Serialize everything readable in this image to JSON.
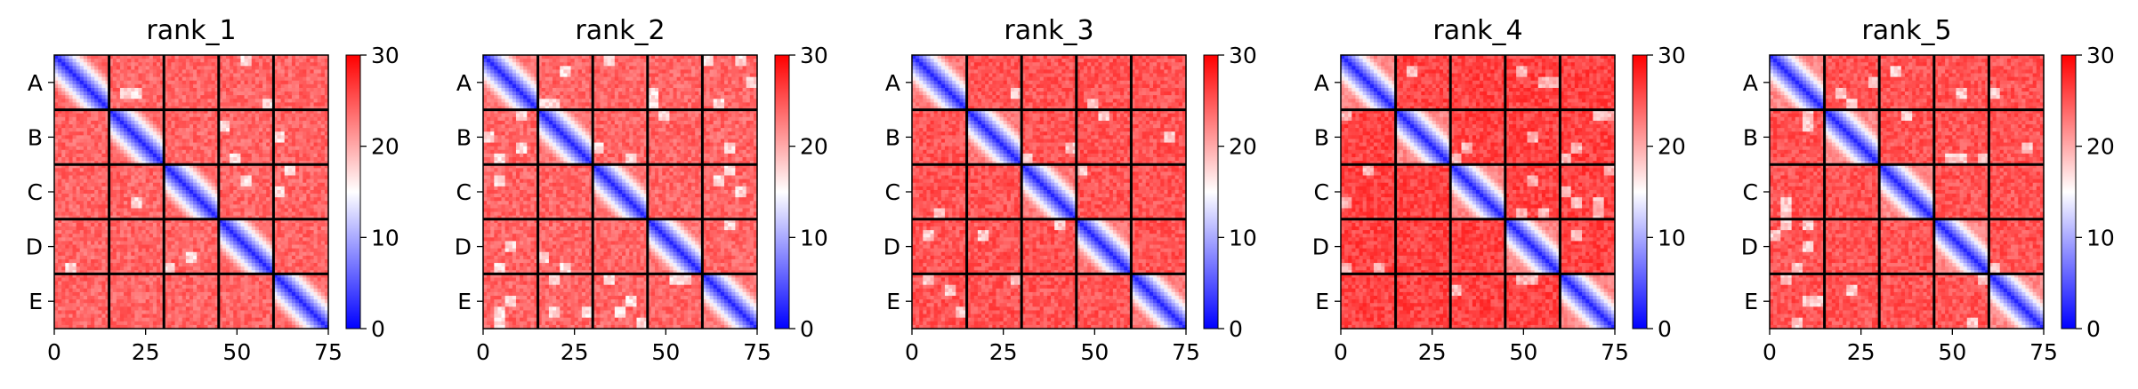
{
  "chart_data": [
    {
      "type": "heatmap",
      "title": "rank_1",
      "x_ticks": [
        "0",
        "25",
        "50",
        "75"
      ],
      "y_ticks": [
        "A",
        "B",
        "C",
        "D",
        "E"
      ],
      "xlim": [
        0,
        75
      ],
      "ylim": [
        0,
        75
      ],
      "chains": [
        "A",
        "B",
        "C",
        "D",
        "E"
      ],
      "chain_boundaries": [
        15,
        30,
        45,
        60
      ],
      "colorbar": {
        "min": 0,
        "max": 30,
        "ticks": [
          "0",
          "10",
          "20",
          "30"
        ],
        "colormap": "bwr"
      },
      "diagonal_value": 2,
      "intra_chain_offdiag_value": 24,
      "inter_chain_value": 24
    },
    {
      "type": "heatmap",
      "title": "rank_2",
      "x_ticks": [
        "0",
        "25",
        "50",
        "75"
      ],
      "y_ticks": [
        "A",
        "B",
        "C",
        "D",
        "E"
      ],
      "xlim": [
        0,
        75
      ],
      "ylim": [
        0,
        75
      ],
      "chains": [
        "A",
        "B",
        "C",
        "D",
        "E"
      ],
      "chain_boundaries": [
        15,
        30,
        45,
        60
      ],
      "colorbar": {
        "min": 0,
        "max": 30,
        "ticks": [
          "0",
          "10",
          "20",
          "30"
        ],
        "colormap": "bwr"
      },
      "diagonal_value": 2,
      "intra_chain_offdiag_value": 23,
      "inter_chain_value": 24
    },
    {
      "type": "heatmap",
      "title": "rank_3",
      "x_ticks": [
        "0",
        "25",
        "50",
        "75"
      ],
      "y_ticks": [
        "A",
        "B",
        "C",
        "D",
        "E"
      ],
      "xlim": [
        0,
        75
      ],
      "ylim": [
        0,
        75
      ],
      "chains": [
        "A",
        "B",
        "C",
        "D",
        "E"
      ],
      "chain_boundaries": [
        15,
        30,
        45,
        60
      ],
      "colorbar": {
        "min": 0,
        "max": 30,
        "ticks": [
          "0",
          "10",
          "20",
          "30"
        ],
        "colormap": "bwr"
      },
      "diagonal_value": 2,
      "intra_chain_offdiag_value": 23,
      "inter_chain_value": 25
    },
    {
      "type": "heatmap",
      "title": "rank_4",
      "x_ticks": [
        "0",
        "25",
        "50",
        "75"
      ],
      "y_ticks": [
        "A",
        "B",
        "C",
        "D",
        "E"
      ],
      "xlim": [
        0,
        75
      ],
      "ylim": [
        0,
        75
      ],
      "chains": [
        "A",
        "B",
        "C",
        "D",
        "E"
      ],
      "chain_boundaries": [
        15,
        30,
        45,
        60
      ],
      "colorbar": {
        "min": 0,
        "max": 30,
        "ticks": [
          "0",
          "10",
          "20",
          "30"
        ],
        "colormap": "bwr"
      },
      "diagonal_value": 2,
      "intra_chain_offdiag_value": 22,
      "inter_chain_value": 26
    },
    {
      "type": "heatmap",
      "title": "rank_5",
      "x_ticks": [
        "0",
        "25",
        "50",
        "75"
      ],
      "y_ticks": [
        "A",
        "B",
        "C",
        "D",
        "E"
      ],
      "xlim": [
        0,
        75
      ],
      "ylim": [
        0,
        75
      ],
      "chains": [
        "A",
        "B",
        "C",
        "D",
        "E"
      ],
      "chain_boundaries": [
        15,
        30,
        45,
        60
      ],
      "colorbar": {
        "min": 0,
        "max": 30,
        "ticks": [
          "0",
          "10",
          "20",
          "30"
        ],
        "colormap": "bwr"
      },
      "diagonal_value": 2,
      "intra_chain_offdiag_value": 22,
      "inter_chain_value": 25
    }
  ]
}
